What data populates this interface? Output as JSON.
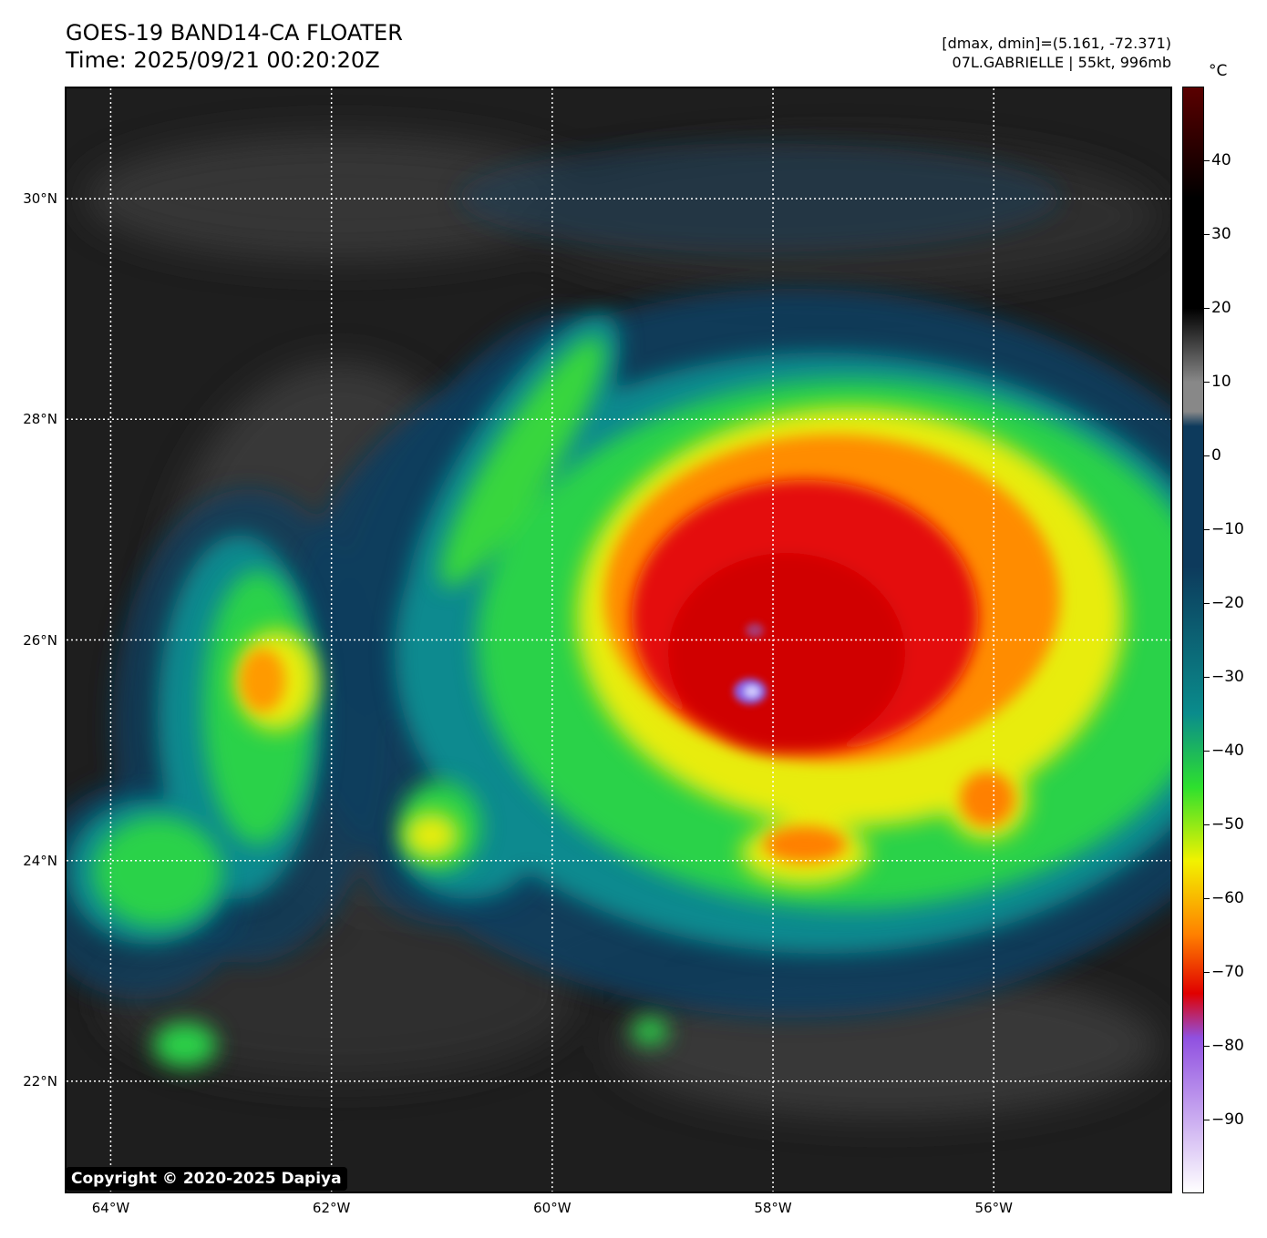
{
  "header": {
    "title_line1": "GOES-19 BAND14-CA FLOATER",
    "title_line2": "Time: 2025/09/21 00:20:20Z",
    "info_line1": "[dmax, dmin]=(5.161, -72.371)",
    "info_line2": "07L.GABRIELLE | 55kt, 996mb"
  },
  "map": {
    "lat_range": [
      21.0,
      31.0
    ],
    "lon_range": [
      -64.4,
      -54.4
    ],
    "lat_lines": [
      {
        "value": 30,
        "label": "30°N"
      },
      {
        "value": 28,
        "label": "28°N"
      },
      {
        "value": 26,
        "label": "26°N"
      },
      {
        "value": 24,
        "label": "24°N"
      },
      {
        "value": 22,
        "label": "22°N"
      }
    ],
    "lon_lines": [
      {
        "value": -64,
        "label": "64°W"
      },
      {
        "value": -62,
        "label": "62°W"
      },
      {
        "value": -60,
        "label": "60°W"
      },
      {
        "value": -58,
        "label": "58°W"
      },
      {
        "value": -56,
        "label": "56°W"
      }
    ],
    "gridlines": "dotted-white",
    "storm_center": {
      "lat": 25.6,
      "lon": -58.25
    }
  },
  "colorbar": {
    "unit": "°C",
    "range": [
      -100,
      50
    ],
    "ticks": [
      {
        "value": 40,
        "label": "40"
      },
      {
        "value": 30,
        "label": "30"
      },
      {
        "value": 20,
        "label": "20"
      },
      {
        "value": 10,
        "label": "10"
      },
      {
        "value": 0,
        "label": "0"
      },
      {
        "value": -10,
        "label": "−10"
      },
      {
        "value": -20,
        "label": "−20"
      },
      {
        "value": -30,
        "label": "−30"
      },
      {
        "value": -40,
        "label": "−40"
      },
      {
        "value": -50,
        "label": "−50"
      },
      {
        "value": -60,
        "label": "−60"
      },
      {
        "value": -70,
        "label": "−70"
      },
      {
        "value": -80,
        "label": "−80"
      },
      {
        "value": -90,
        "label": "−90"
      }
    ],
    "colors": {
      "warm_top": "#5a0000",
      "black": "#000000",
      "grey": "#888888",
      "dark_blue": "#0d3a5c",
      "teal": "#0a8c8c",
      "green": "#2ee02e",
      "yellow": "#f2f200",
      "orange": "#ff8000",
      "red": "#e00000",
      "purple": "#9050e0",
      "white": "#ffffff"
    }
  },
  "footer": {
    "copyright": "Copyright © 2020-2025 Dapiya"
  }
}
